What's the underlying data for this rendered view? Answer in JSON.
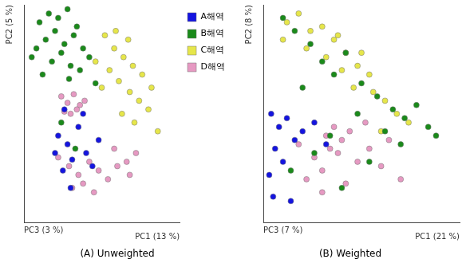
{
  "chart_data": [
    {
      "type": "scatter",
      "title": "(A) Unweighted",
      "x_label": "PC1 (13 %)",
      "y_label": "PC2 (5 %)",
      "z_label": "PC3 (3 %)",
      "xlim": [
        0,
        10
      ],
      "ylim": [
        0,
        10
      ],
      "grid": false,
      "tick_labels": false,
      "legend": "right",
      "marker": "circle",
      "series": [
        {
          "name": "A해역",
          "color": "#1414e0",
          "x": [
            2.2,
            2.8,
            3.1,
            3.5,
            2.5,
            4.0,
            4.4,
            3.0,
            2.0,
            3.8,
            4.8,
            2.6
          ],
          "values": [
            4.0,
            3.6,
            2.9,
            4.4,
            2.4,
            3.2,
            2.6,
            1.6,
            3.2,
            5.0,
            3.8,
            5.2
          ]
        },
        {
          "name": "B해역",
          "color": "#1a8a1a",
          "x": [
            1.0,
            1.6,
            2.2,
            2.8,
            3.4,
            1.4,
            2.0,
            2.6,
            3.2,
            3.8,
            0.5,
            1.8,
            2.4,
            3.0,
            4.2,
            1.2,
            2.9,
            3.6,
            4.6,
            0.8,
            2.4,
            3.3
          ],
          "values": [
            9.2,
            9.6,
            9.4,
            9.8,
            9.0,
            8.4,
            8.8,
            8.2,
            8.6,
            8.0,
            7.6,
            7.4,
            7.8,
            7.2,
            7.6,
            6.8,
            6.6,
            7.0,
            6.4,
            8.0,
            4.6,
            3.4
          ]
        },
        {
          "name": "C해역",
          "color": "#e6e64a",
          "x": [
            5.2,
            5.8,
            6.4,
            7.0,
            7.6,
            8.2,
            5.5,
            6.1,
            6.8,
            7.4,
            8.0,
            4.6,
            5.0,
            6.3,
            7.1,
            8.6,
            5.9,
            6.7
          ],
          "values": [
            8.6,
            8.0,
            7.6,
            7.2,
            6.8,
            6.2,
            7.0,
            6.5,
            6.0,
            5.6,
            5.2,
            7.4,
            6.2,
            5.0,
            4.6,
            4.2,
            8.8,
            8.4
          ]
        },
        {
          "name": "D해역",
          "color": "#e699c2",
          "x": [
            2.4,
            2.8,
            3.2,
            3.6,
            2.6,
            3.0,
            3.4,
            3.9,
            2.2,
            2.9,
            3.5,
            4.2,
            4.8,
            5.4,
            6.0,
            6.6,
            7.2,
            3.1,
            3.8,
            4.5,
            5.8,
            6.8
          ],
          "values": [
            5.8,
            5.5,
            5.9,
            5.4,
            5.1,
            5.0,
            5.2,
            5.6,
            3.0,
            2.6,
            2.2,
            2.8,
            2.4,
            2.0,
            2.6,
            2.8,
            3.2,
            1.6,
            1.8,
            1.4,
            3.4,
            2.2
          ]
        }
      ]
    },
    {
      "type": "scatter",
      "title": "(B) Weighted",
      "x_label": "PC1 (21 %)",
      "y_label": "PC2 (8 %)",
      "z_label": "PC3 (7 %)",
      "xlim": [
        0,
        10
      ],
      "ylim": [
        0,
        10
      ],
      "grid": false,
      "tick_labels": false,
      "marker": "circle",
      "series": [
        {
          "name": "A해역",
          "color": "#1414e0",
          "x": [
            0.4,
            0.8,
            1.2,
            0.6,
            1.6,
            2.0,
            0.3,
            1.0,
            2.6,
            3.2,
            0.5,
            1.4
          ],
          "values": [
            5.0,
            4.4,
            4.8,
            3.4,
            3.8,
            4.2,
            2.2,
            2.8,
            4.6,
            3.6,
            1.2,
            1.0
          ]
        },
        {
          "name": "B해역",
          "color": "#1a8a1a",
          "x": [
            1.0,
            1.6,
            2.4,
            3.0,
            3.6,
            4.2,
            2.0,
            5.0,
            5.8,
            6.6,
            7.2,
            7.8,
            8.4,
            6.2,
            4.8,
            3.4,
            2.6,
            1.4,
            7.0,
            5.4,
            8.8,
            4.0
          ],
          "values": [
            9.4,
            8.8,
            8.2,
            7.4,
            6.8,
            7.8,
            6.2,
            6.4,
            5.8,
            5.2,
            4.8,
            5.4,
            4.4,
            4.2,
            5.0,
            4.0,
            3.2,
            2.4,
            3.6,
            2.8,
            4.0,
            1.6
          ]
        },
        {
          "name": "C해역",
          "color": "#e6e64a",
          "x": [
            1.2,
            1.8,
            2.4,
            3.0,
            3.6,
            4.2,
            4.8,
            5.4,
            2.2,
            3.2,
            4.0,
            4.6,
            5.6,
            6.2,
            6.8,
            7.4,
            3.8,
            5.0,
            1.0,
            6.0
          ],
          "values": [
            9.2,
            9.6,
            8.8,
            9.0,
            8.4,
            7.8,
            7.2,
            6.8,
            8.0,
            7.6,
            7.0,
            6.2,
            6.0,
            5.6,
            5.0,
            4.6,
            8.6,
            7.8,
            8.4,
            4.2
          ]
        },
        {
          "name": "D해역",
          "color": "#e699c2",
          "x": [
            3.2,
            3.6,
            4.0,
            3.4,
            3.8,
            4.4,
            2.6,
            3.0,
            4.8,
            5.4,
            6.0,
            2.2,
            5.2,
            6.4,
            7.0,
            3.0,
            4.2,
            1.8
          ],
          "values": [
            4.0,
            4.4,
            3.8,
            3.4,
            3.2,
            4.2,
            3.0,
            2.4,
            2.8,
            3.4,
            2.6,
            2.0,
            4.6,
            3.8,
            2.0,
            1.4,
            1.8,
            3.6
          ]
        }
      ]
    }
  ]
}
